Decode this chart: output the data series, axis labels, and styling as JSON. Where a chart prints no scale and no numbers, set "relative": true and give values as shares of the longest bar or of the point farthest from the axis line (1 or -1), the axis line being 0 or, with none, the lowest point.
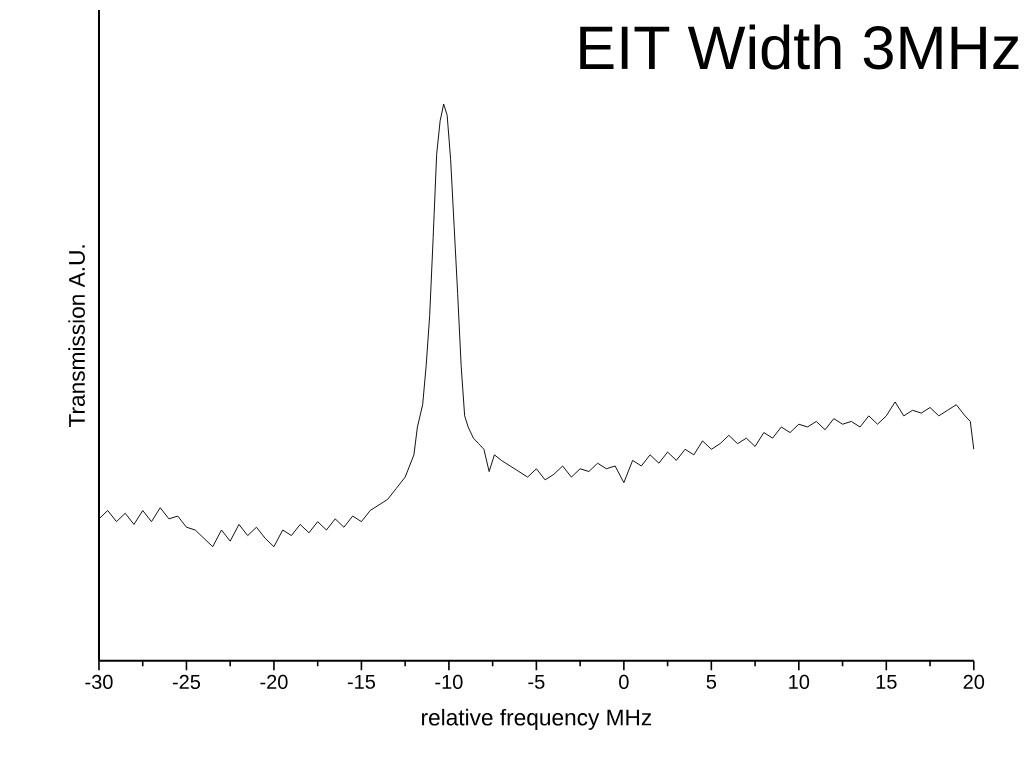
{
  "chart_data": {
    "type": "line",
    "relative": true,
    "xlabel": "relative frequency MHz",
    "ylabel": "Transmission A.U.",
    "annotations": [
      "EIT Width 3MHz"
    ],
    "xlim": [
      -30,
      20
    ],
    "xticks": [
      -30,
      -25,
      -20,
      -15,
      -10,
      -5,
      0,
      5,
      10,
      15,
      20
    ],
    "color": "#000000",
    "x": [
      -30,
      -29.5,
      -29,
      -28.5,
      -28,
      -27.5,
      -27,
      -26.5,
      -26,
      -25.5,
      -25,
      -24.5,
      -24,
      -23.5,
      -23,
      -22.5,
      -22,
      -21.5,
      -21,
      -20.5,
      -20,
      -19.5,
      -19,
      -18.5,
      -18,
      -17.5,
      -17,
      -16.5,
      -16,
      -15.5,
      -15,
      -14.5,
      -14,
      -13.5,
      -13,
      -12.5,
      -12,
      -11.8,
      -11.5,
      -11.3,
      -11.1,
      -10.9,
      -10.7,
      -10.5,
      -10.3,
      -10.1,
      -9.9,
      -9.7,
      -9.5,
      -9.3,
      -9.1,
      -8.9,
      -8.6,
      -8.3,
      -8,
      -7.7,
      -7.4,
      -7,
      -6.5,
      -6,
      -5.5,
      -5,
      -4.5,
      -4,
      -3.5,
      -3,
      -2.5,
      -2,
      -1.5,
      -1,
      -0.5,
      0,
      0.5,
      1,
      1.5,
      2,
      2.5,
      3,
      3.5,
      4,
      4.5,
      5,
      5.5,
      6,
      6.5,
      7,
      7.5,
      8,
      8.5,
      9,
      9.5,
      10,
      10.5,
      11,
      11.5,
      12,
      12.5,
      13,
      13.5,
      14,
      14.5,
      15,
      15.5,
      16,
      16.5,
      17,
      17.5,
      18,
      18.5,
      19,
      19.5,
      19.8,
      20
    ],
    "values": [
      0.255,
      0.27,
      0.25,
      0.265,
      0.245,
      0.27,
      0.25,
      0.275,
      0.255,
      0.26,
      0.24,
      0.235,
      0.22,
      0.205,
      0.235,
      0.215,
      0.245,
      0.225,
      0.24,
      0.22,
      0.205,
      0.235,
      0.225,
      0.245,
      0.23,
      0.25,
      0.235,
      0.255,
      0.24,
      0.26,
      0.25,
      0.27,
      0.28,
      0.29,
      0.31,
      0.33,
      0.37,
      0.42,
      0.46,
      0.53,
      0.62,
      0.76,
      0.91,
      0.97,
      1.0,
      0.98,
      0.9,
      0.78,
      0.66,
      0.53,
      0.44,
      0.42,
      0.4,
      0.39,
      0.38,
      0.34,
      0.37,
      0.36,
      0.35,
      0.34,
      0.33,
      0.345,
      0.325,
      0.335,
      0.35,
      0.33,
      0.345,
      0.34,
      0.355,
      0.345,
      0.35,
      0.32,
      0.36,
      0.35,
      0.37,
      0.355,
      0.375,
      0.36,
      0.38,
      0.37,
      0.395,
      0.38,
      0.39,
      0.405,
      0.39,
      0.4,
      0.385,
      0.41,
      0.4,
      0.42,
      0.41,
      0.425,
      0.42,
      0.43,
      0.415,
      0.435,
      0.425,
      0.43,
      0.42,
      0.44,
      0.425,
      0.44,
      0.465,
      0.44,
      0.45,
      0.445,
      0.455,
      0.44,
      0.45,
      0.46,
      0.44,
      0.43,
      0.38
    ]
  }
}
